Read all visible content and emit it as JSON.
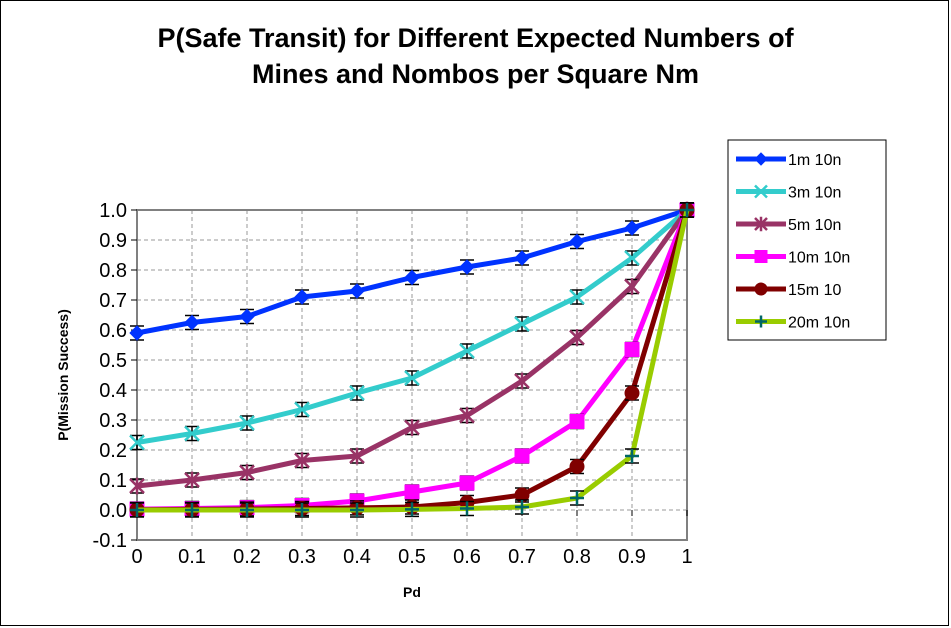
{
  "chart_data": {
    "type": "line",
    "title_line1": "P(Safe Transit) for Different Expected Numbers of",
    "title_line2": "Mines and Nombos per Square Nm",
    "xlabel": "Pd",
    "ylabel": "P(Mission Success)",
    "x": [
      0,
      0.1,
      0.2,
      0.3,
      0.4,
      0.5,
      0.6,
      0.7,
      0.8,
      0.9,
      1
    ],
    "x_tick_labels": [
      "0",
      "0.1",
      "0.2",
      "0.3",
      "0.4",
      "0.5",
      "0.6",
      "0.7",
      "0.8",
      "0.9",
      "1"
    ],
    "y_tick_labels": [
      "-0.1",
      "0.0",
      "0.1",
      "0.2",
      "0.3",
      "0.4",
      "0.5",
      "0.6",
      "0.7",
      "0.8",
      "0.9",
      "1.0"
    ],
    "xlim": [
      0,
      1
    ],
    "ylim": [
      -0.1,
      1.0
    ],
    "grid": true,
    "legend_position": "right",
    "series": [
      {
        "name": "1m 10n",
        "color": "#0033ff",
        "marker": "diamond",
        "values": [
          0.59,
          0.625,
          0.645,
          0.71,
          0.73,
          0.775,
          0.81,
          0.84,
          0.895,
          0.94,
          1.0
        ]
      },
      {
        "name": "3m 10n",
        "color": "#33cccc",
        "marker": "x",
        "values": [
          0.225,
          0.255,
          0.29,
          0.335,
          0.39,
          0.44,
          0.53,
          0.62,
          0.71,
          0.84,
          1.0
        ]
      },
      {
        "name": "5m 10n",
        "color": "#993366",
        "marker": "asterisk",
        "values": [
          0.08,
          0.1,
          0.125,
          0.165,
          0.18,
          0.275,
          0.315,
          0.43,
          0.575,
          0.745,
          1.0
        ]
      },
      {
        "name": "10m 10n",
        "color": "#ff00ff",
        "marker": "square",
        "values": [
          0.003,
          0.005,
          0.008,
          0.015,
          0.03,
          0.06,
          0.09,
          0.18,
          0.295,
          0.535,
          1.0
        ]
      },
      {
        "name": "15m 10",
        "color": "#800000",
        "marker": "circle",
        "values": [
          0.001,
          0.002,
          0.003,
          0.005,
          0.007,
          0.01,
          0.025,
          0.05,
          0.145,
          0.39,
          1.0
        ]
      },
      {
        "name": "20m 10n",
        "color": "#99cc00",
        "marker": "plus",
        "marker_color": "#006666",
        "values": [
          0.0,
          0.0,
          0.0,
          0.0,
          0.0,
          0.002,
          0.005,
          0.01,
          0.04,
          0.18,
          1.0
        ]
      }
    ]
  }
}
